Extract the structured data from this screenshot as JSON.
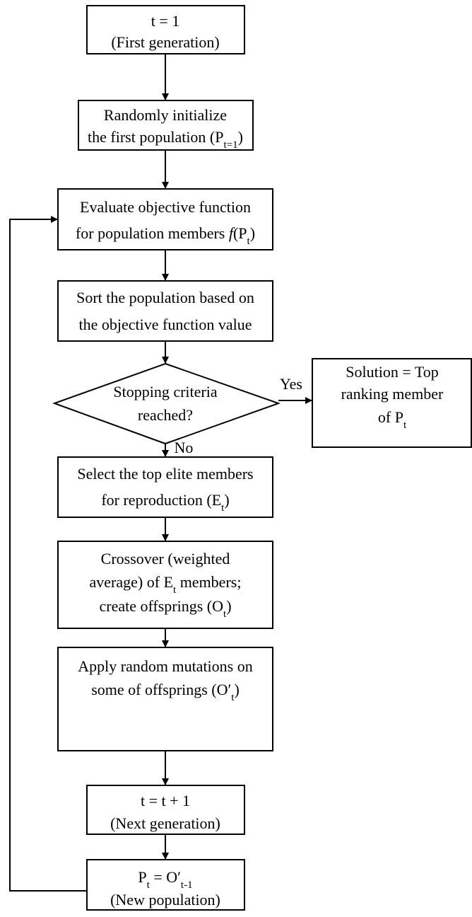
{
  "nodes": [
    {
      "lines": [
        [
          "t = 1"
        ],
        [
          "(First generation)"
        ]
      ]
    },
    {
      "lines": [
        [
          "Randomly initialize"
        ],
        [
          "the first population (P",
          "t=1",
          ")"
        ]
      ]
    },
    {
      "lines": [
        [
          "Evaluate objective function"
        ],
        [
          "for population members ",
          "f",
          "(P",
          "t",
          ")"
        ]
      ]
    },
    {
      "lines": [
        [
          "Sort the population based on"
        ],
        [
          "the objective function value"
        ]
      ]
    },
    {
      "lines": [
        [
          "Stopping criteria"
        ],
        [
          "reached?"
        ]
      ]
    },
    {
      "lines": [
        [
          "Solution = Top"
        ],
        [
          "ranking member"
        ],
        [
          "of P",
          "t"
        ]
      ]
    },
    {
      "lines": [
        [
          "Select the top elite members"
        ],
        [
          "for reproduction (E",
          "t",
          ")"
        ]
      ]
    },
    {
      "lines": [
        [
          "Crossover (weighted"
        ],
        [
          "average) of E",
          "t",
          " members;"
        ],
        [
          "create offsprings (O",
          "t",
          ")"
        ]
      ]
    },
    {
      "lines": [
        [
          "Apply random mutations on"
        ],
        [
          "some of offsprings (O′",
          "t",
          ")"
        ]
      ]
    },
    {
      "lines": [
        [
          "t = t + 1"
        ],
        [
          "(Next generation)"
        ]
      ]
    },
    {
      "lines": [
        [
          "P",
          "t",
          " = O′",
          "t-1"
        ],
        [
          "(New population)"
        ]
      ]
    }
  ],
  "edges": [
    {
      "label": "Yes"
    },
    {
      "label": "No"
    }
  ]
}
